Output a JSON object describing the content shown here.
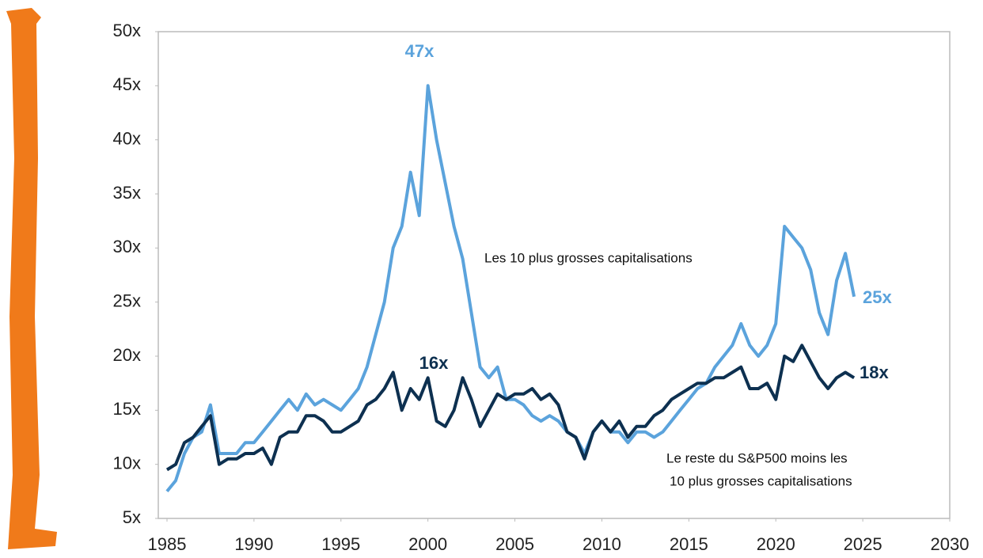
{
  "chart_data": {
    "type": "line",
    "x": [
      1985,
      1985.5,
      1986,
      1986.5,
      1987,
      1987.5,
      1988,
      1988.5,
      1989,
      1989.5,
      1990,
      1990.5,
      1991,
      1991.5,
      1992,
      1992.5,
      1993,
      1993.5,
      1994,
      1994.5,
      1995,
      1995.5,
      1996,
      1996.5,
      1997,
      1997.5,
      1998,
      1998.5,
      1999,
      1999.5,
      2000,
      2000.5,
      2001,
      2001.5,
      2002,
      2002.5,
      2003,
      2003.5,
      2004,
      2004.5,
      2005,
      2005.5,
      2006,
      2006.5,
      2007,
      2007.5,
      2008,
      2008.5,
      2009,
      2009.5,
      2010,
      2010.5,
      2011,
      2011.5,
      2012,
      2012.5,
      2013,
      2013.5,
      2014,
      2014.5,
      2015,
      2015.5,
      2016,
      2016.5,
      2017,
      2017.5,
      2018,
      2018.5,
      2019,
      2019.5,
      2020,
      2020.5,
      2021,
      2021.5,
      2022,
      2022.5,
      2023,
      2023.5,
      2024,
      2024.5
    ],
    "series": [
      {
        "name": "Les 10 plus grosses capitalisations",
        "color": "#5ba3dc",
        "values": [
          7.5,
          8.5,
          11,
          12.5,
          13,
          15.5,
          11,
          11,
          11,
          12,
          12,
          13,
          14,
          15,
          16,
          15,
          16.5,
          15.5,
          16,
          15.5,
          15,
          16,
          17,
          19,
          22,
          25,
          30,
          32,
          37,
          33,
          45,
          40,
          36,
          32,
          29,
          24,
          19,
          18,
          19,
          16,
          16,
          15.5,
          14.5,
          14,
          14.5,
          14,
          13,
          12.5,
          11,
          13,
          14,
          13,
          13,
          12,
          13,
          13,
          12.5,
          13,
          14,
          15,
          16,
          17,
          17.5,
          19,
          20,
          21,
          23,
          21,
          20,
          21,
          23,
          32,
          31,
          30,
          28,
          24,
          22,
          27,
          29.5,
          25.5
        ]
      },
      {
        "name": "Le reste du S&P500 moins les 10 plus grosses capitalisations",
        "color": "#0d3050",
        "values": [
          9.5,
          10,
          12,
          12.5,
          13.5,
          14.5,
          10,
          10.5,
          10.5,
          11,
          11,
          11.5,
          10,
          12.5,
          13,
          13,
          14.5,
          14.5,
          14,
          13,
          13,
          13.5,
          14,
          15.5,
          16,
          17,
          18.5,
          15,
          17,
          16,
          18,
          14,
          13.5,
          15,
          18,
          16,
          13.5,
          15,
          16.5,
          16,
          16.5,
          16.5,
          17,
          16,
          16.5,
          15.5,
          13,
          12.5,
          10.5,
          13,
          14,
          13,
          14,
          12.5,
          13.5,
          13.5,
          14.5,
          15,
          16,
          16.5,
          17,
          17.5,
          17.5,
          18,
          18,
          18.5,
          19,
          17,
          17,
          17.5,
          16,
          20,
          19.5,
          21,
          19.5,
          18,
          17,
          18,
          18.5,
          18
        ]
      }
    ],
    "xlim": [
      1984.5,
      2030
    ],
    "xticks": [
      1985,
      1990,
      1995,
      2000,
      2005,
      2010,
      2015,
      2020,
      2025,
      2030
    ],
    "ylim": [
      5,
      50
    ],
    "yticks": [
      {
        "value": 5,
        "label": "5x"
      },
      {
        "value": 10,
        "label": "10x"
      },
      {
        "value": 15,
        "label": "15x"
      },
      {
        "value": 20,
        "label": "20x"
      },
      {
        "value": 25,
        "label": "25x"
      },
      {
        "value": 30,
        "label": "30x"
      },
      {
        "value": 35,
        "label": "35x"
      },
      {
        "value": 40,
        "label": "40x"
      },
      {
        "value": 45,
        "label": "45x"
      },
      {
        "value": 50,
        "label": "50x"
      }
    ],
    "annotations": [
      {
        "text": "47x",
        "color": "#5ba3dc"
      },
      {
        "text": "16x",
        "color": "#0d3050"
      },
      {
        "text": "25x",
        "color": "#5ba3dc"
      },
      {
        "text": "18x",
        "color": "#0d3050"
      },
      {
        "text": "Les 10 plus grosses capitalisations"
      },
      {
        "text": "Le reste du S&P500 moins les"
      },
      {
        "text": "10 plus grosses capitalisations"
      }
    ]
  }
}
